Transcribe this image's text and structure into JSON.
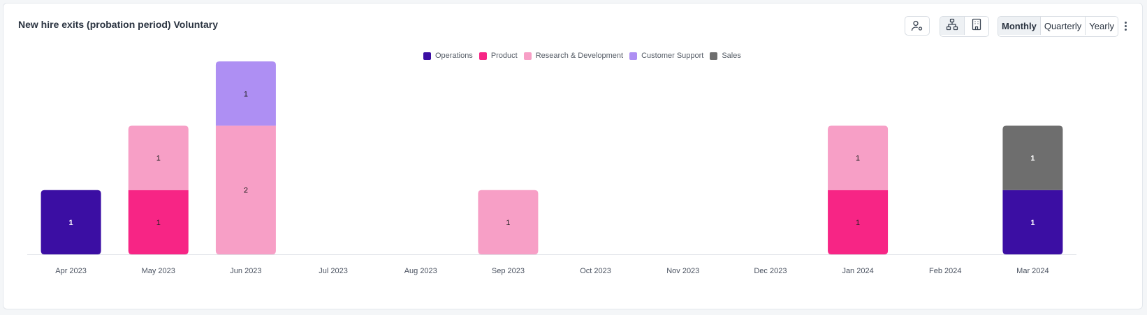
{
  "header": {
    "title": "New hire exits (probation period) Voluntary",
    "user_filter_icon": "user-settings-icon",
    "org_chart_icon": "org-chart-icon",
    "building_icon": "building-icon",
    "period_options": [
      "Monthly",
      "Quarterly",
      "Yearly"
    ],
    "selected_period": "Monthly",
    "more_icon": "kebab-menu-icon"
  },
  "chart_data": {
    "type": "bar",
    "stacked": true,
    "title": "New hire exits (probation period) Voluntary",
    "xlabel": "",
    "ylabel": "",
    "ylim": [
      0,
      3
    ],
    "grid": false,
    "legend_position": "top-center",
    "categories": [
      "Apr 2023",
      "May 2023",
      "Jun 2023",
      "Jul 2023",
      "Aug 2023",
      "Sep 2023",
      "Oct 2023",
      "Nov 2023",
      "Dec 2023",
      "Jan 2024",
      "Feb 2024",
      "Mar 2024"
    ],
    "series": [
      {
        "name": "Operations",
        "color": "#3b0ea3",
        "label_color": "#ffffff",
        "values": [
          1,
          0,
          0,
          0,
          0,
          0,
          0,
          0,
          0,
          0,
          0,
          1
        ]
      },
      {
        "name": "Product",
        "color": "#f72585",
        "label_color": "#222222",
        "values": [
          0,
          1,
          0,
          0,
          0,
          0,
          0,
          0,
          0,
          1,
          0,
          0
        ]
      },
      {
        "name": "Research & Development",
        "color": "#f79fc6",
        "label_color": "#222222",
        "values": [
          0,
          1,
          2,
          0,
          0,
          1,
          0,
          0,
          0,
          1,
          0,
          0
        ]
      },
      {
        "name": "Customer Support",
        "color": "#ae8ff3",
        "label_color": "#222222",
        "values": [
          0,
          0,
          1,
          0,
          0,
          0,
          0,
          0,
          0,
          0,
          0,
          0
        ]
      },
      {
        "name": "Sales",
        "color": "#6e6e6e",
        "label_color": "#ffffff",
        "values": [
          0,
          0,
          0,
          0,
          0,
          0,
          0,
          0,
          0,
          0,
          0,
          1
        ]
      }
    ]
  }
}
